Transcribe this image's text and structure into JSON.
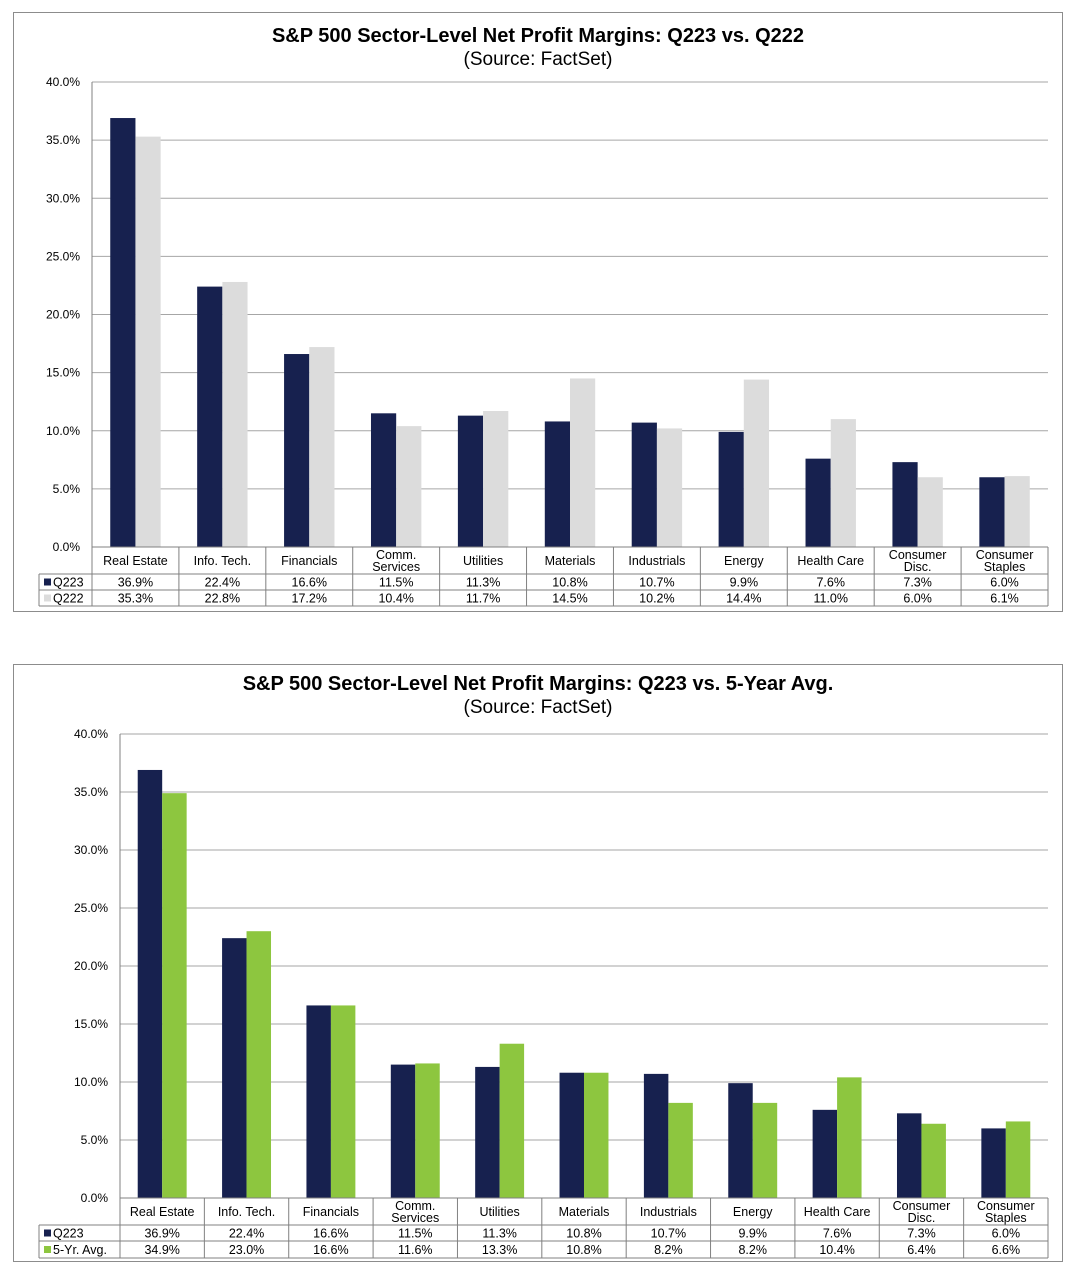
{
  "chart_data": [
    {
      "type": "bar",
      "title": "S&P 500 Sector-Level Net Profit Margins: Q223 vs. Q222",
      "subtitle": "(Source: FactSet)",
      "categories": [
        "Real Estate",
        "Info. Tech.",
        "Financials",
        "Comm. Services",
        "Utilities",
        "Materials",
        "Industrials",
        "Energy",
        "Health Care",
        "Consumer Disc.",
        "Consumer Staples"
      ],
      "y_ticks": [
        "0.0%",
        "5.0%",
        "10.0%",
        "15.0%",
        "20.0%",
        "25.0%",
        "30.0%",
        "35.0%",
        "40.0%"
      ],
      "ylim": [
        0,
        40
      ],
      "grid": true,
      "legend": "data-table",
      "series": [
        {
          "name": "Q223",
          "color": "#17214f",
          "values": [
            36.9,
            22.4,
            16.6,
            11.5,
            11.3,
            10.8,
            10.7,
            9.9,
            7.6,
            7.3,
            6.0
          ],
          "labels": [
            "36.9%",
            "22.4%",
            "16.6%",
            "11.5%",
            "11.3%",
            "10.8%",
            "10.7%",
            "9.9%",
            "7.6%",
            "7.3%",
            "6.0%"
          ]
        },
        {
          "name": "Q222",
          "color": "#dcdcdc",
          "values": [
            35.3,
            22.8,
            17.2,
            10.4,
            11.7,
            14.5,
            10.2,
            14.4,
            11.0,
            6.0,
            6.1
          ],
          "labels": [
            "35.3%",
            "22.8%",
            "17.2%",
            "10.4%",
            "11.7%",
            "14.5%",
            "10.2%",
            "14.4%",
            "11.0%",
            "6.0%",
            "6.1%"
          ]
        }
      ]
    },
    {
      "type": "bar",
      "title": "S&P 500 Sector-Level Net Profit Margins: Q223 vs. 5-Year Avg.",
      "subtitle": "(Source: FactSet)",
      "categories": [
        "Real Estate",
        "Info. Tech.",
        "Financials",
        "Comm. Services",
        "Utilities",
        "Materials",
        "Industrials",
        "Energy",
        "Health Care",
        "Consumer Disc.",
        "Consumer Staples"
      ],
      "y_ticks": [
        "0.0%",
        "5.0%",
        "10.0%",
        "15.0%",
        "20.0%",
        "25.0%",
        "30.0%",
        "35.0%",
        "40.0%"
      ],
      "ylim": [
        0,
        40
      ],
      "grid": true,
      "legend": "data-table",
      "series": [
        {
          "name": "Q223",
          "color": "#17214f",
          "values": [
            36.9,
            22.4,
            16.6,
            11.5,
            11.3,
            10.8,
            10.7,
            9.9,
            7.6,
            7.3,
            6.0
          ],
          "labels": [
            "36.9%",
            "22.4%",
            "16.6%",
            "11.5%",
            "11.3%",
            "10.8%",
            "10.7%",
            "9.9%",
            "7.6%",
            "7.3%",
            "6.0%"
          ]
        },
        {
          "name": "5-Yr. Avg.",
          "color": "#8dc63f",
          "values": [
            34.9,
            23.0,
            16.6,
            11.6,
            13.3,
            10.8,
            8.2,
            8.2,
            10.4,
            6.4,
            6.6
          ],
          "labels": [
            "34.9%",
            "23.0%",
            "16.6%",
            "11.6%",
            "13.3%",
            "10.8%",
            "8.2%",
            "8.2%",
            "10.4%",
            "6.4%",
            "6.6%"
          ]
        }
      ]
    }
  ]
}
